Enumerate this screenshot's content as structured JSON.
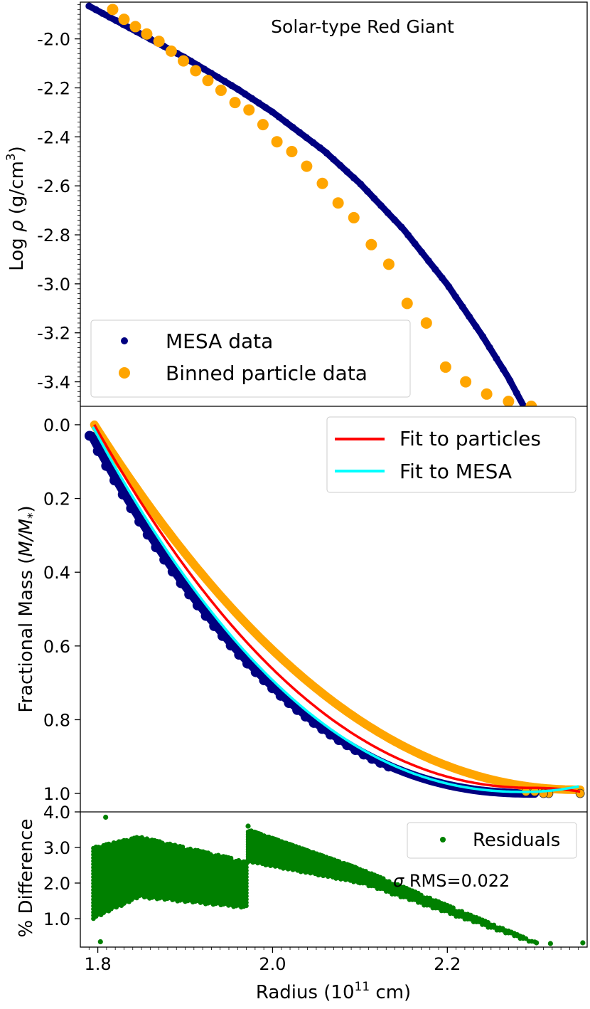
{
  "chart_data": [
    {
      "type": "scatter",
      "panel": "top",
      "title": "Solar-type Red Giant",
      "xlabel": "",
      "ylabel": "Log ρ (g/cm³)",
      "ylabel_parts": {
        "main": "Log ",
        "sym": "ρ",
        "unit": " (g/cm",
        "sup": "3",
        "close": ")"
      },
      "xlim": [
        1.78,
        2.36
      ],
      "ylim": [
        -3.5,
        -1.85
      ],
      "yticks": [
        -2.0,
        -2.2,
        -2.4,
        -2.6,
        -2.8,
        -3.0,
        -3.2,
        -3.4
      ],
      "ytick_labels": [
        "-2.0",
        "-2.2",
        "-2.4",
        "-2.6",
        "-2.8",
        "-3.0",
        "-3.2",
        "-3.4"
      ],
      "legend_position": "lower-left",
      "series": [
        {
          "name": "MESA data",
          "color": "#000080",
          "marker": "dot",
          "curve": {
            "kind": "density-profile",
            "x_start": 1.79,
            "x_end": 2.295,
            "points": 260
          },
          "x": [
            1.79,
            1.84,
            1.9,
            1.96,
            2.0,
            2.06,
            2.1,
            2.15,
            2.2,
            2.24,
            2.27,
            2.295
          ],
          "y": [
            -1.866,
            -1.962,
            -2.077,
            -2.205,
            -2.299,
            -2.46,
            -2.59,
            -2.778,
            -3.003,
            -3.212,
            -3.384,
            -3.55
          ]
        },
        {
          "name": "Binned particle data",
          "color": "#ffa500",
          "marker": "circle",
          "x": [
            1.817,
            1.83,
            1.843,
            1.856,
            1.87,
            1.884,
            1.898,
            1.912,
            1.926,
            1.941,
            1.957,
            1.973,
            1.989,
            2.005,
            2.022,
            2.039,
            2.057,
            2.075,
            2.093,
            2.113,
            2.133,
            2.154,
            2.176,
            2.198,
            2.221,
            2.245,
            2.27,
            2.296
          ],
          "y": [
            -1.88,
            -1.92,
            -1.95,
            -1.98,
            -2.01,
            -2.05,
            -2.09,
            -2.13,
            -2.17,
            -2.21,
            -2.26,
            -2.29,
            -2.35,
            -2.42,
            -2.46,
            -2.52,
            -2.59,
            -2.67,
            -2.73,
            -2.84,
            -2.92,
            -3.08,
            -3.16,
            -3.34,
            -3.4,
            -3.45,
            -3.48,
            -3.5
          ]
        }
      ]
    },
    {
      "type": "line",
      "panel": "middle",
      "xlabel": "",
      "ylabel": "Fractional Mass (M/M*)",
      "ylabel_parts": {
        "main": "Fractional Mass (",
        "sym": "M/M",
        "sub": "*",
        "close": ")"
      },
      "xlim": [
        1.78,
        2.36
      ],
      "ylim": [
        1.05,
        -0.05
      ],
      "y_inverted": true,
      "yticks": [
        0.0,
        0.2,
        0.4,
        0.6,
        0.8,
        1.0
      ],
      "ytick_labels": [
        "0.0",
        "0.2",
        "0.4",
        "0.6",
        "0.8",
        "1.0"
      ],
      "legend_position": "top-right",
      "series": [
        {
          "name": "MESA data",
          "color": "#000080",
          "marker": "circle",
          "curve": {
            "x_start": 1.793,
            "x_end": 2.3,
            "y_start": 0.03,
            "y_end": 1.0,
            "shape": 2.3
          }
        },
        {
          "name": "Binned particle data",
          "color": "#ffa500",
          "marker": "circle",
          "curve": {
            "x_start": 1.796,
            "x_end": 2.352,
            "y_start": 0.0,
            "y_end": 0.99,
            "shape": 2.1
          }
        },
        {
          "name": "Fit to particles",
          "color": "#ff0000",
          "curve": {
            "x_start": 1.796,
            "x_min": 2.3,
            "x_end": 2.352,
            "y_start": 0.0,
            "y_min": 0.985,
            "y_end": 0.995,
            "shape": 2.15
          }
        },
        {
          "name": "Fit to MESA",
          "color": "#00ffff",
          "curve": {
            "x_start": 1.796,
            "x_min": 2.29,
            "x_end": 2.352,
            "y_start": 0.0,
            "y_min": 0.99,
            "y_end": 0.975,
            "shape": 2.2
          }
        }
      ]
    },
    {
      "type": "scatter",
      "panel": "bottom",
      "xlabel": "Radius (10¹¹ cm)",
      "xlabel_parts": {
        "main": "Radius (10",
        "sup": "11",
        "close": " cm)"
      },
      "ylabel": "% Difference",
      "xlim": [
        1.78,
        2.36
      ],
      "ylim": [
        0.2,
        4.0
      ],
      "xticks": [
        1.8,
        2.0,
        2.2
      ],
      "xtick_labels": [
        "1.8",
        "2.0",
        "2.2"
      ],
      "yticks": [
        1.0,
        2.0,
        3.0,
        4.0
      ],
      "ytick_labels": [
        "1.0",
        "2.0",
        "3.0",
        "4.0"
      ],
      "legend_position": "top-right",
      "annotation": {
        "sym": "σ",
        "text": " RMS=0.022"
      },
      "series": [
        {
          "name": "Residuals",
          "color": "#008000",
          "marker": "dot",
          "segments": [
            {
              "x_start": 1.795,
              "x_end": 1.97,
              "top": [
                3.0,
                3.3,
                2.6
              ],
              "bottom": [
                1.0,
                1.6,
                1.3
              ],
              "count": 60
            },
            {
              "x_start": 1.972,
              "x_end": 2.1,
              "top": [
                3.5,
                2.4
              ],
              "bottom": [
                2.6,
                2.0
              ],
              "count": 70
            },
            {
              "x_start": 2.1,
              "x_end": 2.3,
              "top": [
                2.4,
                0.35
              ],
              "bottom": [
                2.0,
                0.3
              ],
              "count": 60
            }
          ],
          "x": [
            1.809,
            1.972,
            1.803,
            2.355,
            2.318,
            2.302
          ],
          "y": [
            3.85,
            3.6,
            0.35,
            0.32,
            0.3,
            0.32
          ]
        }
      ]
    }
  ]
}
